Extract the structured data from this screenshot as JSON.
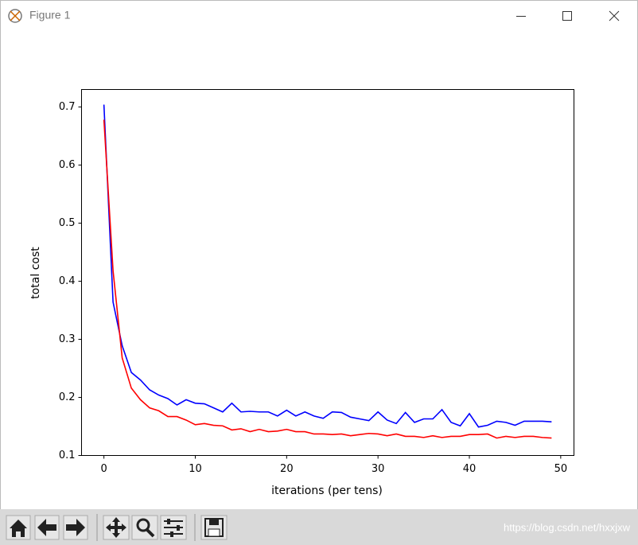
{
  "window": {
    "title": "Figure 1"
  },
  "chart_data": {
    "type": "line",
    "xlabel": "iterations (per tens)",
    "ylabel": "total cost",
    "x": [
      0,
      1,
      2,
      3,
      4,
      5,
      6,
      7,
      8,
      9,
      10,
      11,
      12,
      13,
      14,
      15,
      16,
      17,
      18,
      19,
      20,
      21,
      22,
      23,
      24,
      25,
      26,
      27,
      28,
      29,
      30,
      31,
      32,
      33,
      34,
      35,
      36,
      37,
      38,
      39,
      40,
      41,
      42,
      43,
      44,
      45,
      46,
      47,
      48,
      49
    ],
    "series": [
      {
        "color": "#0000ff",
        "values": [
          0.704,
          0.364,
          0.289,
          0.243,
          0.23,
          0.213,
          0.204,
          0.198,
          0.187,
          0.196,
          0.19,
          0.189,
          0.182,
          0.175,
          0.19,
          0.175,
          0.176,
          0.175,
          0.175,
          0.168,
          0.178,
          0.168,
          0.175,
          0.168,
          0.164,
          0.175,
          0.174,
          0.166,
          0.163,
          0.16,
          0.175,
          0.161,
          0.155,
          0.174,
          0.157,
          0.163,
          0.163,
          0.179,
          0.157,
          0.151,
          0.172,
          0.149,
          0.152,
          0.159,
          0.157,
          0.152,
          0.159,
          0.159,
          0.159,
          0.158
        ]
      },
      {
        "color": "#ff0000",
        "values": [
          0.678,
          0.418,
          0.268,
          0.216,
          0.196,
          0.182,
          0.177,
          0.167,
          0.167,
          0.161,
          0.153,
          0.155,
          0.152,
          0.151,
          0.144,
          0.146,
          0.141,
          0.145,
          0.141,
          0.142,
          0.145,
          0.141,
          0.141,
          0.137,
          0.137,
          0.136,
          0.137,
          0.134,
          0.136,
          0.138,
          0.137,
          0.134,
          0.137,
          0.133,
          0.133,
          0.131,
          0.134,
          0.131,
          0.133,
          0.133,
          0.136,
          0.136,
          0.137,
          0.13,
          0.133,
          0.131,
          0.133,
          0.133,
          0.131,
          0.13
        ]
      }
    ],
    "xlim": [
      -2.45,
      51.45
    ],
    "xticks": [
      0,
      10,
      20,
      30,
      40,
      50
    ],
    "ylim": [
      0.1,
      0.73
    ],
    "yticks": [
      0.1,
      0.2,
      0.3,
      0.4,
      0.5,
      0.6,
      0.7
    ],
    "grid": false
  },
  "watermark": "https://blog.csdn.net/hxxjxw"
}
